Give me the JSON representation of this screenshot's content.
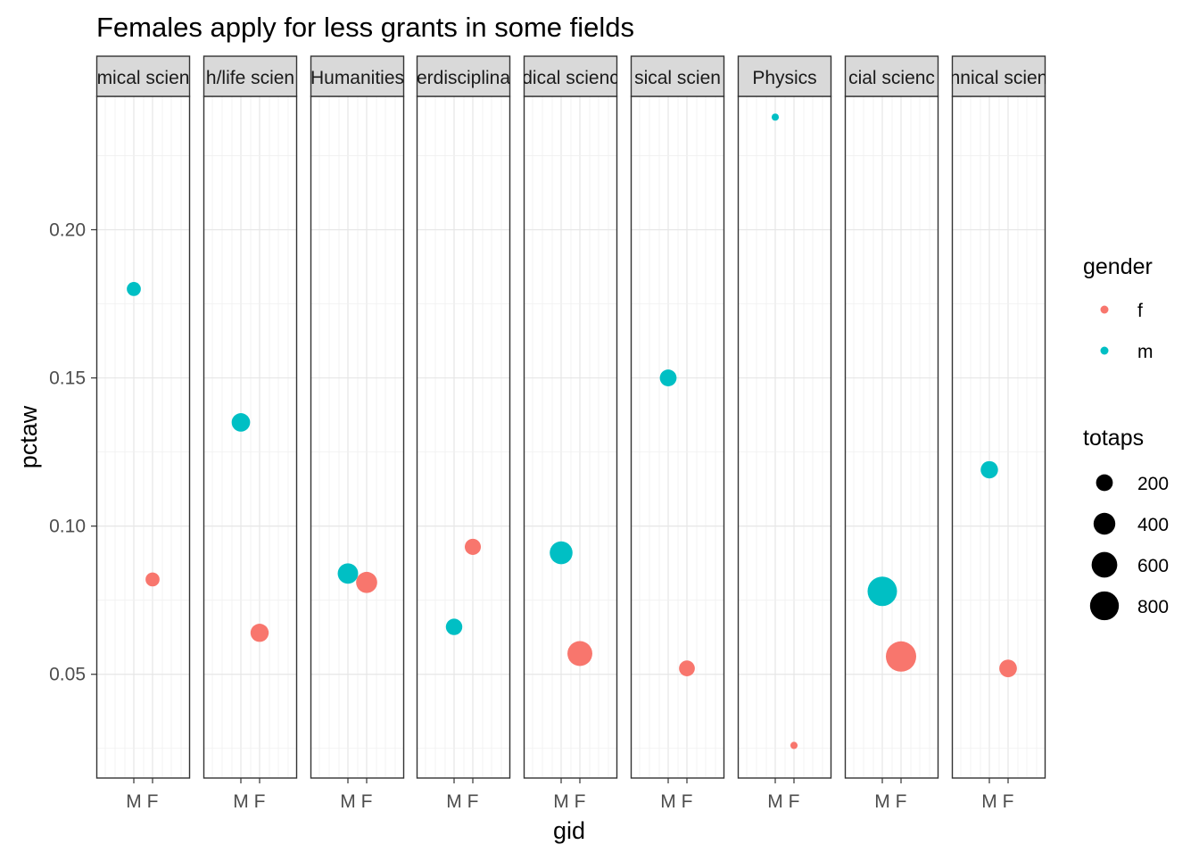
{
  "chart_data": {
    "type": "scatter",
    "title": "Females apply for less grants in some fields",
    "xlabel": "gid",
    "ylabel": "pctaw",
    "x_categories": [
      "M",
      "F"
    ],
    "y_ticks": [
      "0.05",
      "0.10",
      "0.15",
      "0.20"
    ],
    "ylim": [
      0.015,
      0.245
    ],
    "grid": true,
    "legend_position": "right",
    "facets": [
      {
        "label": "Chemical sciences",
        "display_label": "mical scien",
        "points": [
          {
            "x": "M",
            "gender": "m",
            "pctaw": 0.18,
            "totaps": 120
          },
          {
            "x": "F",
            "gender": "f",
            "pctaw": 0.082,
            "totaps": 120
          }
        ]
      },
      {
        "label": "Earth/life sciences",
        "display_label": "h/life scien",
        "points": [
          {
            "x": "M",
            "gender": "m",
            "pctaw": 0.135,
            "totaps": 260
          },
          {
            "x": "F",
            "gender": "f",
            "pctaw": 0.064,
            "totaps": 250
          }
        ]
      },
      {
        "label": "Humanities",
        "display_label": "Humanities",
        "points": [
          {
            "x": "M",
            "gender": "m",
            "pctaw": 0.084,
            "totaps": 340
          },
          {
            "x": "F",
            "gender": "f",
            "pctaw": 0.081,
            "totaps": 370
          }
        ]
      },
      {
        "label": "Interdisciplinary",
        "display_label": "erdisciplina",
        "points": [
          {
            "x": "M",
            "gender": "m",
            "pctaw": 0.066,
            "totaps": 190
          },
          {
            "x": "F",
            "gender": "f",
            "pctaw": 0.093,
            "totaps": 180
          }
        ]
      },
      {
        "label": "Medical sciences",
        "display_label": "dical scienc",
        "points": [
          {
            "x": "M",
            "gender": "m",
            "pctaw": 0.091,
            "totaps": 450
          },
          {
            "x": "F",
            "gender": "f",
            "pctaw": 0.057,
            "totaps": 560
          }
        ]
      },
      {
        "label": "Physical sciences",
        "display_label": "sical scien",
        "points": [
          {
            "x": "M",
            "gender": "m",
            "pctaw": 0.15,
            "totaps": 200
          },
          {
            "x": "F",
            "gender": "f",
            "pctaw": 0.052,
            "totaps": 170
          }
        ]
      },
      {
        "label": "Physics",
        "display_label": "Physics",
        "points": [
          {
            "x": "M",
            "gender": "m",
            "pctaw": 0.238,
            "totaps": 9
          },
          {
            "x": "F",
            "gender": "f",
            "pctaw": 0.026,
            "totaps": 9
          }
        ]
      },
      {
        "label": "Social sciences",
        "display_label": "cial scienc",
        "points": [
          {
            "x": "M",
            "gender": "m",
            "pctaw": 0.078,
            "totaps": 840
          },
          {
            "x": "F",
            "gender": "f",
            "pctaw": 0.056,
            "totaps": 900
          }
        ]
      },
      {
        "label": "Technical sciences",
        "display_label": "nnical scien",
        "points": [
          {
            "x": "M",
            "gender": "m",
            "pctaw": 0.119,
            "totaps": 220
          },
          {
            "x": "F",
            "gender": "f",
            "pctaw": 0.052,
            "totaps": 230
          }
        ]
      }
    ],
    "legend": {
      "color": {
        "title": "gender",
        "items": [
          {
            "label": "f",
            "color": "#F8766D"
          },
          {
            "label": "m",
            "color": "#00BFC4"
          }
        ]
      },
      "size": {
        "title": "totaps",
        "items": [
          {
            "label": "200",
            "value": 200
          },
          {
            "label": "400",
            "value": 400
          },
          {
            "label": "600",
            "value": 600
          },
          {
            "label": "800",
            "value": 800
          }
        ]
      }
    },
    "colors": {
      "f": "#F8766D",
      "m": "#00BFC4"
    }
  }
}
